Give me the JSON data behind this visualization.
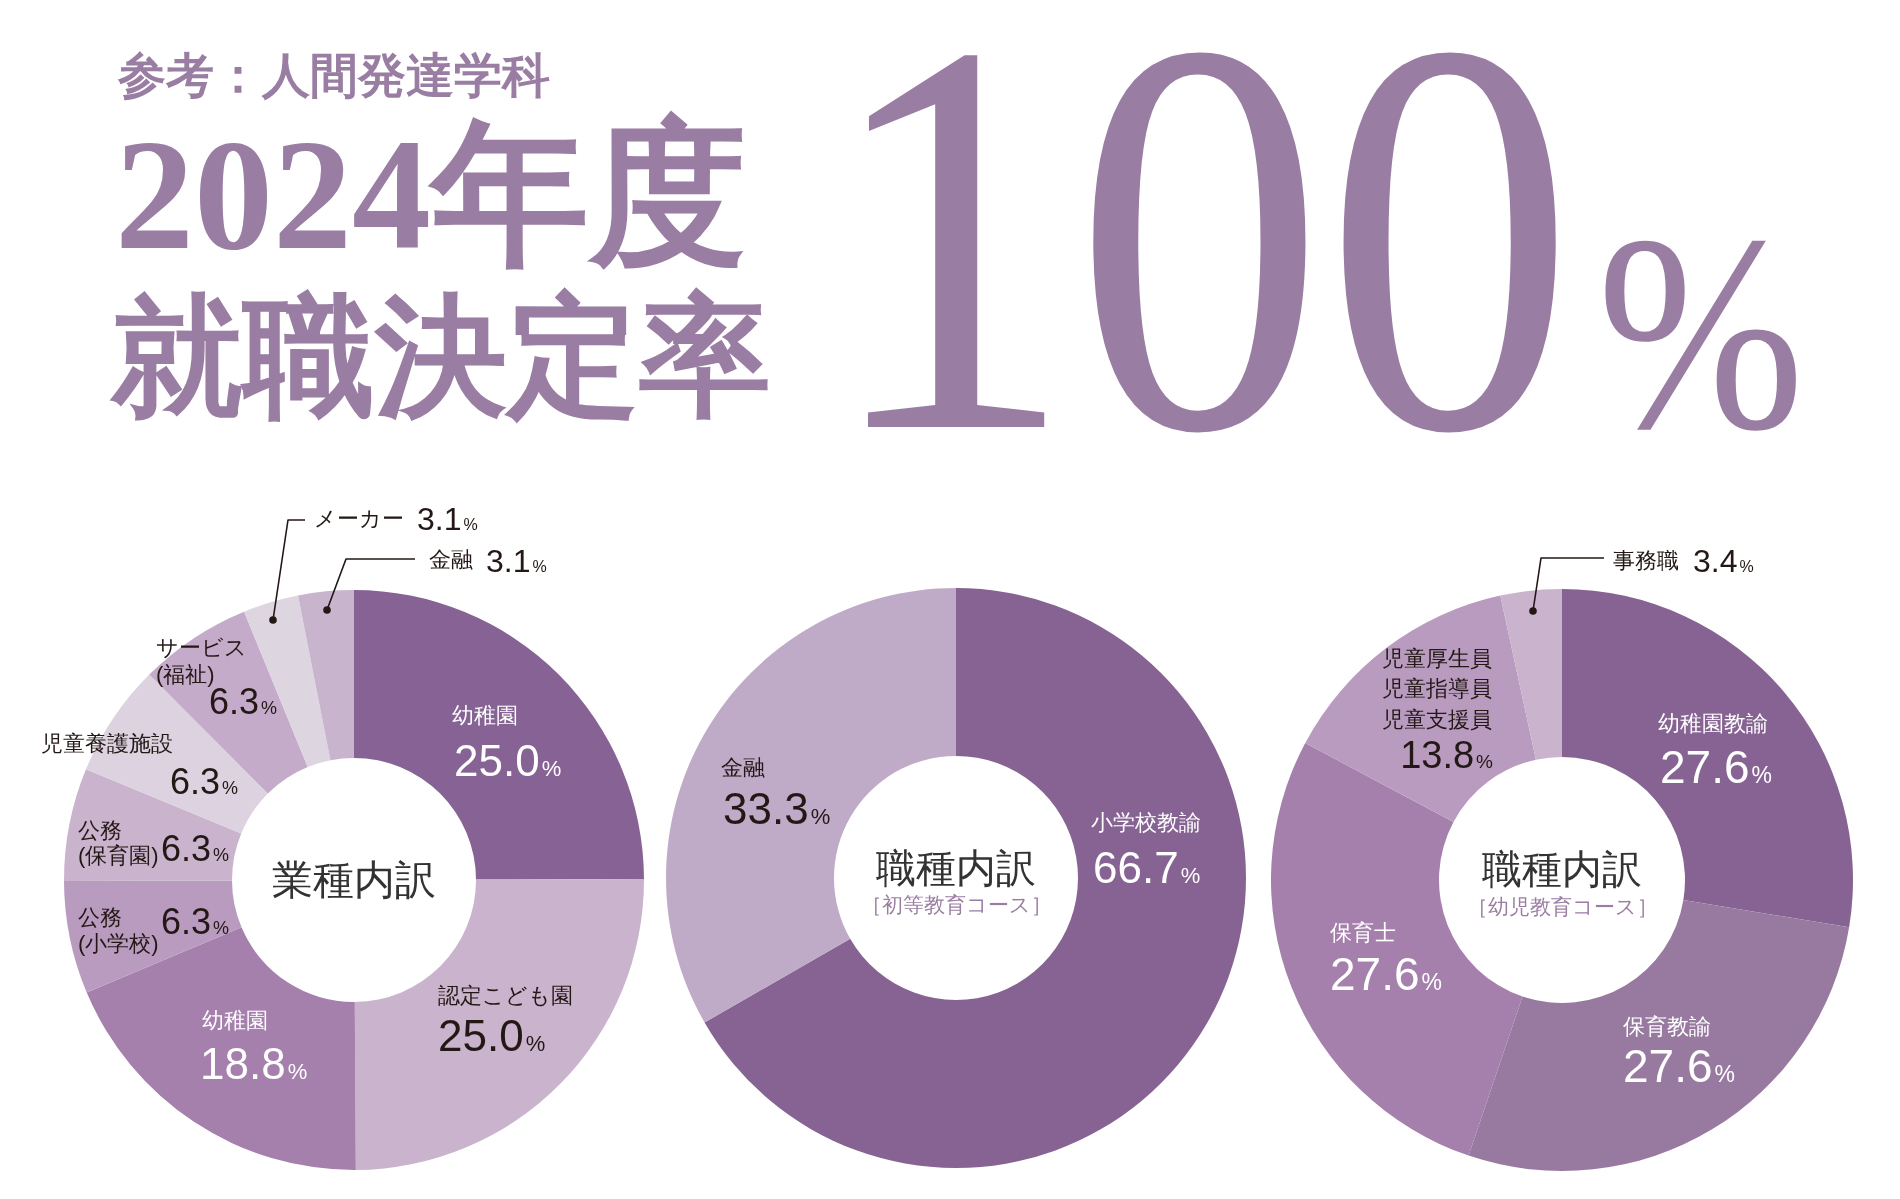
{
  "chart_data": [
    {
      "type": "other",
      "subtitle": "参考：人間発達学科",
      "title": "2024年度就職決定率",
      "annotations": [
        "100%"
      ]
    },
    {
      "type": "donut",
      "title": "業種内訳",
      "categories": [
        "幼稚園",
        "認定こども園",
        "幼稚園",
        "公務\n(小学校)",
        "公務\n(保育園)",
        "児童養護施設",
        "サービス\n(福祉)",
        "メーカー",
        "金融"
      ],
      "values": [
        25.0,
        25.0,
        18.8,
        6.3,
        6.3,
        6.3,
        6.3,
        3.1,
        3.1
      ],
      "value_labels": [
        "25.0%",
        "25.0%",
        "18.8%",
        "6.3%",
        "6.3%",
        "6.3%",
        "6.3%",
        "3.1%",
        "3.1%"
      ],
      "colors": [
        "#866394",
        "#c9b3cd",
        "#a680ad",
        "#b99bc0",
        "#c9b3cd",
        "#ddd3e0",
        "#c4abca",
        "#ddd5e0",
        "#c9b4cd"
      ]
    },
    {
      "type": "donut",
      "title": "職種内訳",
      "subtitle": "［初等教育コース］",
      "categories": [
        "小学校教諭",
        "金融"
      ],
      "values": [
        66.7,
        33.3
      ],
      "value_labels": [
        "66.7%",
        "33.3%"
      ],
      "colors": [
        "#866393",
        "#bfabc8"
      ]
    },
    {
      "type": "donut",
      "title": "職種内訳",
      "subtitle": "［幼児教育コース］",
      "categories": [
        "幼稚園教諭",
        "保育教諭",
        "保育士",
        "児童厚生員児童指導員児童支援員",
        "事務職"
      ],
      "values": [
        27.6,
        27.6,
        27.6,
        13.8,
        3.4
      ],
      "value_labels": [
        "27.6%",
        "27.6%",
        "27.6%",
        "13.8%",
        "3.4%"
      ],
      "colors": [
        "#866393",
        "#987aa1",
        "#a680ad",
        "#b99bc0",
        "#c9b3cd"
      ]
    }
  ]
}
